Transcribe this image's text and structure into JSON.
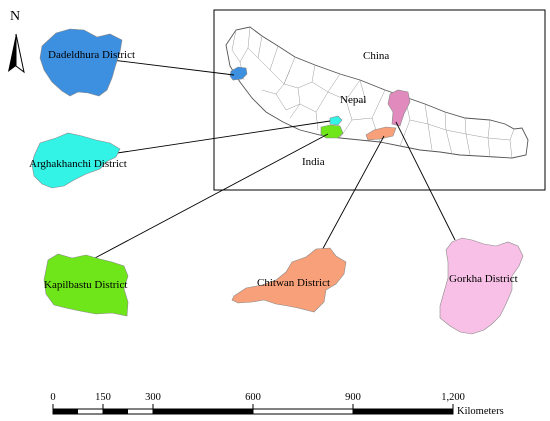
{
  "north_arrow": {
    "letter": "N"
  },
  "inset": {
    "labels": {
      "china": "China",
      "nepal": "Nepal",
      "india": "India"
    }
  },
  "districts": [
    {
      "key": "dadeldhura",
      "name": "Dadeldhura District",
      "color": "#3d8fe0"
    },
    {
      "key": "arghakhanchi",
      "name": "Arghakhanchi District",
      "color": "#33f2e6"
    },
    {
      "key": "kapilbastu",
      "name": "Kapilbastu District",
      "color": "#6fe61a"
    },
    {
      "key": "chitwan",
      "name": "Chitwan District",
      "color": "#f7a079"
    },
    {
      "key": "gorkha",
      "name": "Gorkha District",
      "color": "#f8c0e6"
    }
  ],
  "gorkha_inset_color": "#e08abd",
  "scale_bar": {
    "ticks": [
      "0",
      "150",
      "300",
      "600",
      "900",
      "1,200"
    ],
    "unit": "Kilometers"
  }
}
